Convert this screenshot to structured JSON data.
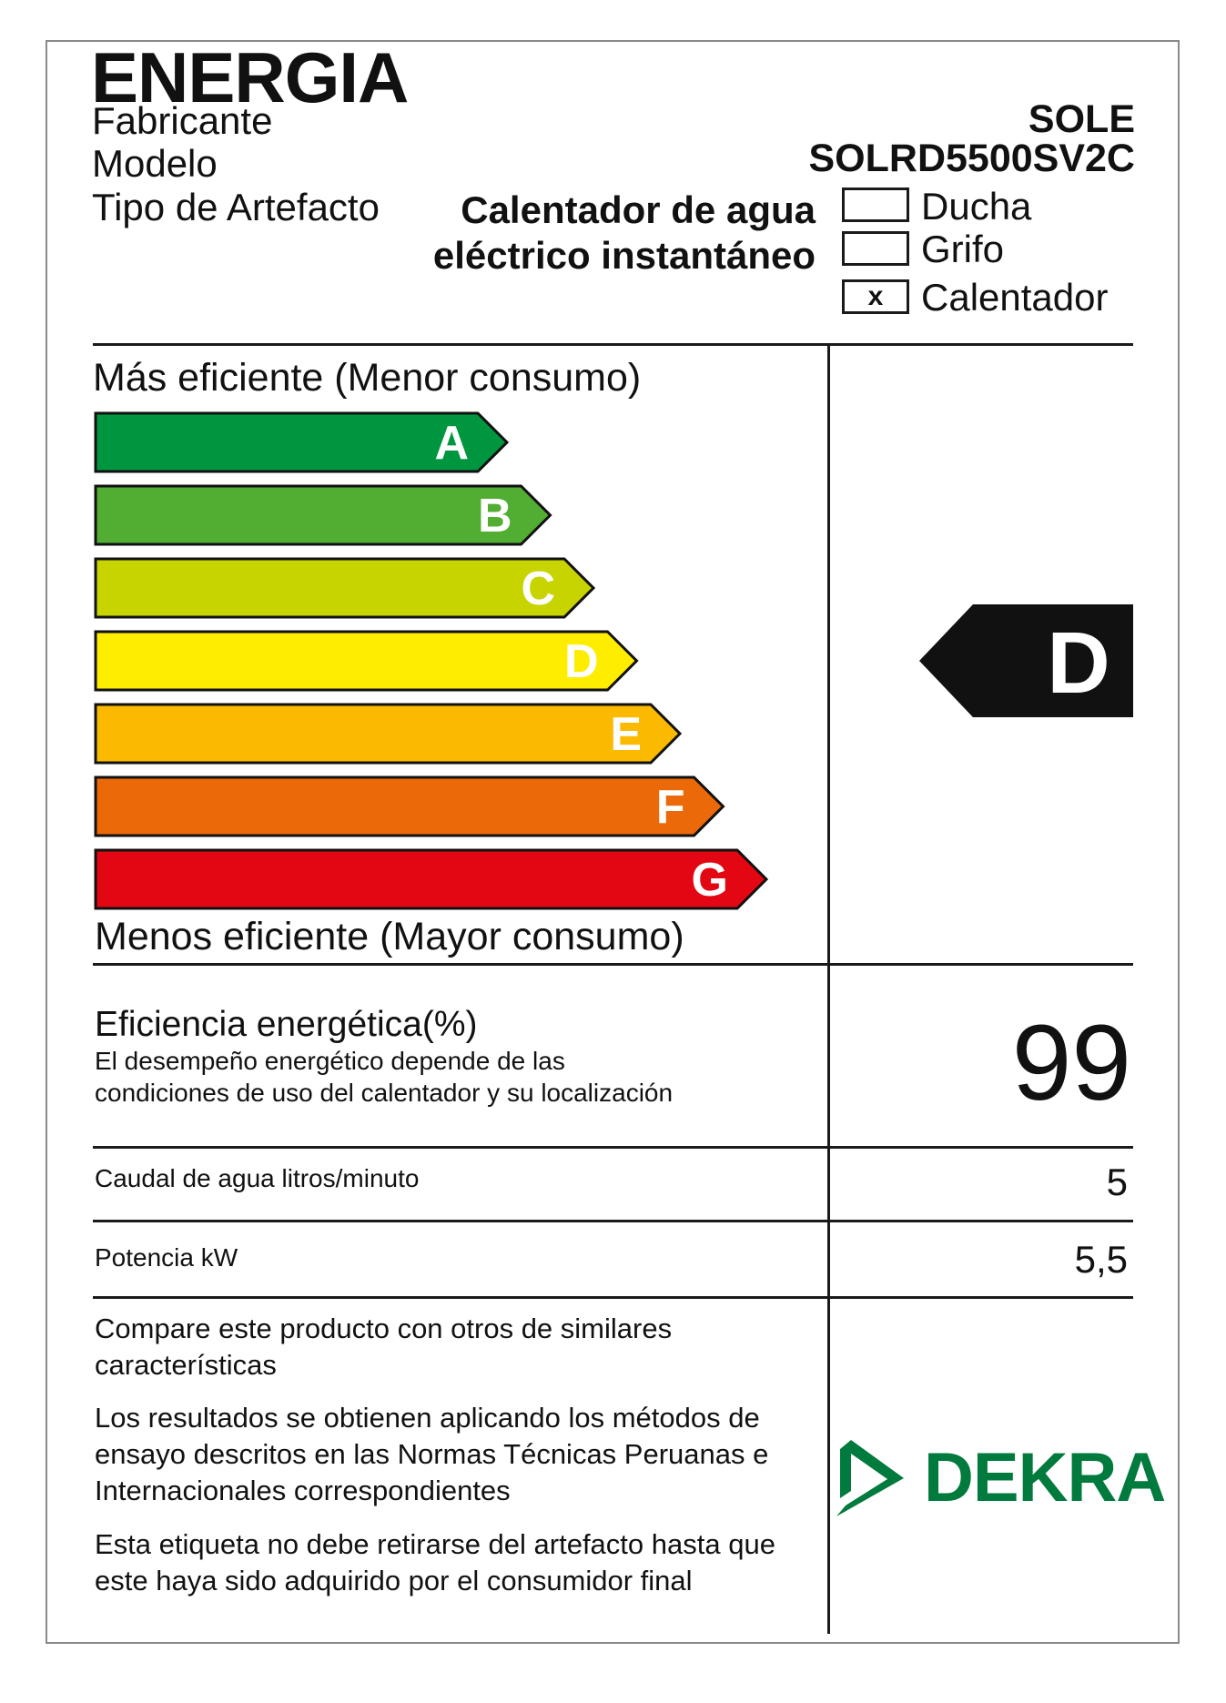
{
  "header": {
    "title": "ENERGIA",
    "fabricante_label": "Fabricante",
    "modelo_label": "Modelo",
    "tipo_label": "Tipo de Artefacto",
    "fabricante_value": "SOLE",
    "modelo_value": "SOLRD5500SV2C",
    "tipo_value_line1": "Calentador de agua",
    "tipo_value_line2": "eléctrico instantáneo"
  },
  "checkboxes": [
    {
      "label": "Ducha",
      "mark": ""
    },
    {
      "label": "Grifo",
      "mark": ""
    },
    {
      "label": "Calentador",
      "mark": "x"
    }
  ],
  "scale": {
    "top_label": "Más eficiente (Menor consumo)",
    "bottom_label": "Menos eficiente (Mayor consumo)",
    "classes": [
      {
        "letter": "A",
        "color": "#009640"
      },
      {
        "letter": "B",
        "color": "#52ae32"
      },
      {
        "letter": "C",
        "color": "#c8d400"
      },
      {
        "letter": "D",
        "color": "#ffed00"
      },
      {
        "letter": "E",
        "color": "#fbba00"
      },
      {
        "letter": "F",
        "color": "#eb6909"
      },
      {
        "letter": "G",
        "color": "#e30613"
      }
    ],
    "rating": "D",
    "rating_color": "#111111"
  },
  "efficiency": {
    "label": "Eficiencia energética(%)",
    "note_line1": "El desempeño energético depende de las",
    "note_line2": "condiciones de uso del calentador y su localización",
    "value": "99"
  },
  "caudal": {
    "label": "Caudal de agua litros/minuto",
    "value": "5"
  },
  "potencia": {
    "label": "Potencia kW",
    "value": "5,5"
  },
  "footer": {
    "p1": "Compare este producto con otros de similares características",
    "p2": "Los resultados se obtienen  aplicando los métodos de ensayo descritos en las Normas Técnicas Peruanas e Internacionales correspondientes",
    "p3": "Esta etiqueta no debe retirarse del artefacto hasta que este haya sido adquirido por el consumidor final",
    "logo_text": "DEKRA",
    "logo_color": "#007a3d"
  }
}
